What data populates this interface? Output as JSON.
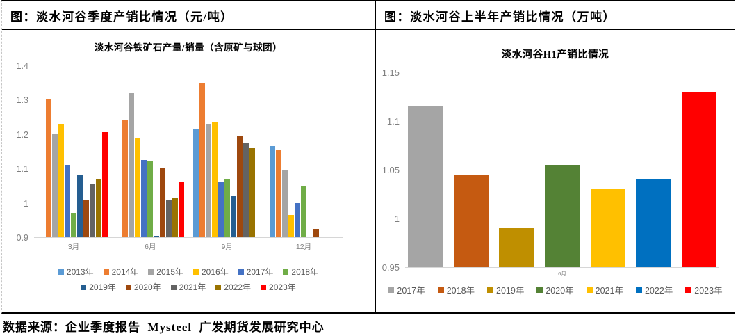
{
  "header": {
    "left_title": "图：淡水河谷季度产销比情况（元/吨）",
    "right_title": "图：淡水河谷上半年产销比情况（万吨）"
  },
  "source_line": "数据来源：企业季度报告  Mysteel  广发期货发展研究中心",
  "chart_data": [
    {
      "type": "bar",
      "title": "淡水河谷铁矿石产量/销量（含原矿与球团）",
      "categories": [
        "3月",
        "6月",
        "9月",
        "12月"
      ],
      "series": [
        {
          "name": "2013年",
          "color": "#5B9BD5",
          "values": [
            null,
            null,
            1.215,
            1.165
          ]
        },
        {
          "name": "2014年",
          "color": "#ED7D31",
          "values": [
            1.3,
            1.24,
            1.35,
            1.155
          ]
        },
        {
          "name": "2015年",
          "color": "#A5A5A5",
          "values": [
            1.2,
            1.32,
            1.23,
            1.095
          ]
        },
        {
          "name": "2016年",
          "color": "#FFC000",
          "values": [
            1.23,
            1.19,
            1.235,
            0.965
          ]
        },
        {
          "name": "2017年",
          "color": "#4472C4",
          "values": [
            1.11,
            1.125,
            1.06,
            1.0
          ]
        },
        {
          "name": "2018年",
          "color": "#70AD47",
          "values": [
            0.97,
            1.12,
            1.07,
            1.05
          ]
        },
        {
          "name": "2019年",
          "color": "#255E91",
          "values": [
            1.08,
            0.905,
            1.02,
            null
          ]
        },
        {
          "name": "2020年",
          "color": "#9E480E",
          "values": [
            1.01,
            1.1,
            1.195,
            0.925
          ]
        },
        {
          "name": "2021年",
          "color": "#636363",
          "values": [
            1.055,
            1.01,
            1.175,
            null
          ]
        },
        {
          "name": "2022年",
          "color": "#997300",
          "values": [
            1.07,
            1.015,
            1.16,
            null
          ]
        },
        {
          "name": "2023年",
          "color": "#FF0000",
          "values": [
            1.205,
            1.06,
            null,
            null
          ]
        }
      ],
      "ylim": [
        0.9,
        1.4
      ],
      "yticks": [
        "1.4",
        "1.3",
        "1.2",
        "1.1",
        "1",
        "0.9"
      ],
      "grid": false,
      "legend_position": "bottom"
    },
    {
      "type": "bar",
      "title": "淡水河谷H1产销比情况",
      "categories": [
        "6月"
      ],
      "series": [
        {
          "name": "2017年",
          "color": "#A5A5A5",
          "values": [
            1.115
          ]
        },
        {
          "name": "2018年",
          "color": "#C55A11",
          "values": [
            1.045
          ]
        },
        {
          "name": "2019年",
          "color": "#BF8F00",
          "values": [
            0.99
          ]
        },
        {
          "name": "2020年",
          "color": "#548235",
          "values": [
            1.055
          ]
        },
        {
          "name": "2021年",
          "color": "#FFC000",
          "values": [
            1.03
          ]
        },
        {
          "name": "2022年",
          "color": "#0070C0",
          "values": [
            1.04
          ]
        },
        {
          "name": "2023年",
          "color": "#FF0000",
          "values": [
            1.13
          ]
        }
      ],
      "ylim": [
        0.95,
        1.15
      ],
      "yticks": [
        "1.15",
        "1.1",
        "1.05",
        "1",
        "0.95"
      ],
      "grid": false,
      "legend_position": "bottom"
    }
  ]
}
